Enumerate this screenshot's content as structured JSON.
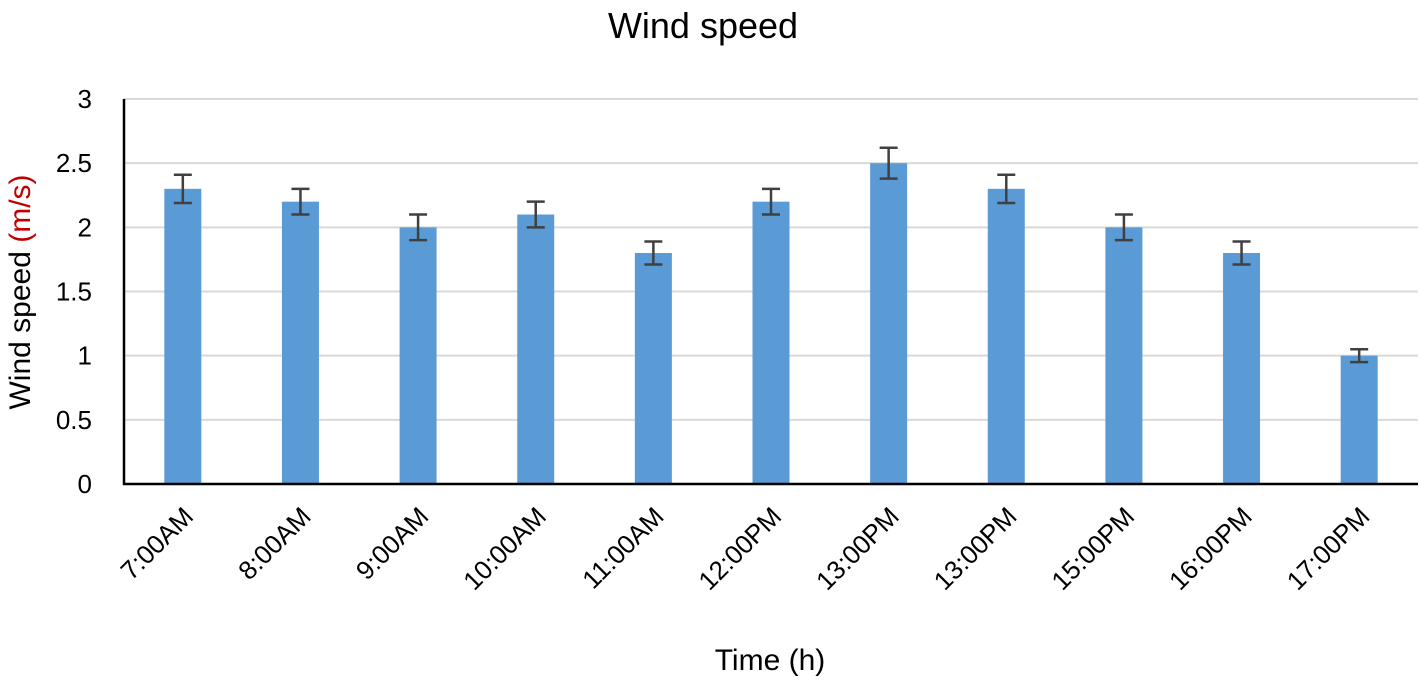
{
  "chart_data": {
    "type": "bar",
    "title": "Wind speed",
    "xlabel": "Time (h)",
    "ylabel": {
      "main": "Wind speed ",
      "unit": "(m/s)"
    },
    "categories": [
      "7:00AM",
      "8:00AM",
      "9:00AM",
      "10:00AM",
      "11:00AM",
      "12:00PM",
      "13:00PM",
      "13:00PM",
      "15:00PM",
      "16:00PM",
      "17:00PM"
    ],
    "values": [
      2.3,
      2.2,
      2.0,
      2.1,
      1.8,
      2.2,
      2.5,
      2.3,
      2.0,
      1.8,
      1.0
    ],
    "errors": [
      0.11,
      0.1,
      0.1,
      0.1,
      0.09,
      0.1,
      0.12,
      0.11,
      0.1,
      0.09,
      0.05
    ],
    "ylim": [
      0,
      3
    ],
    "yticks": [
      "0",
      "0.5",
      "1",
      "1.5",
      "2",
      "2.5",
      "3"
    ],
    "grid": true,
    "legend": "none",
    "colors": {
      "bar": "#5b9bd5",
      "error_bar": "#404040",
      "unit_label": "#c00000"
    }
  }
}
